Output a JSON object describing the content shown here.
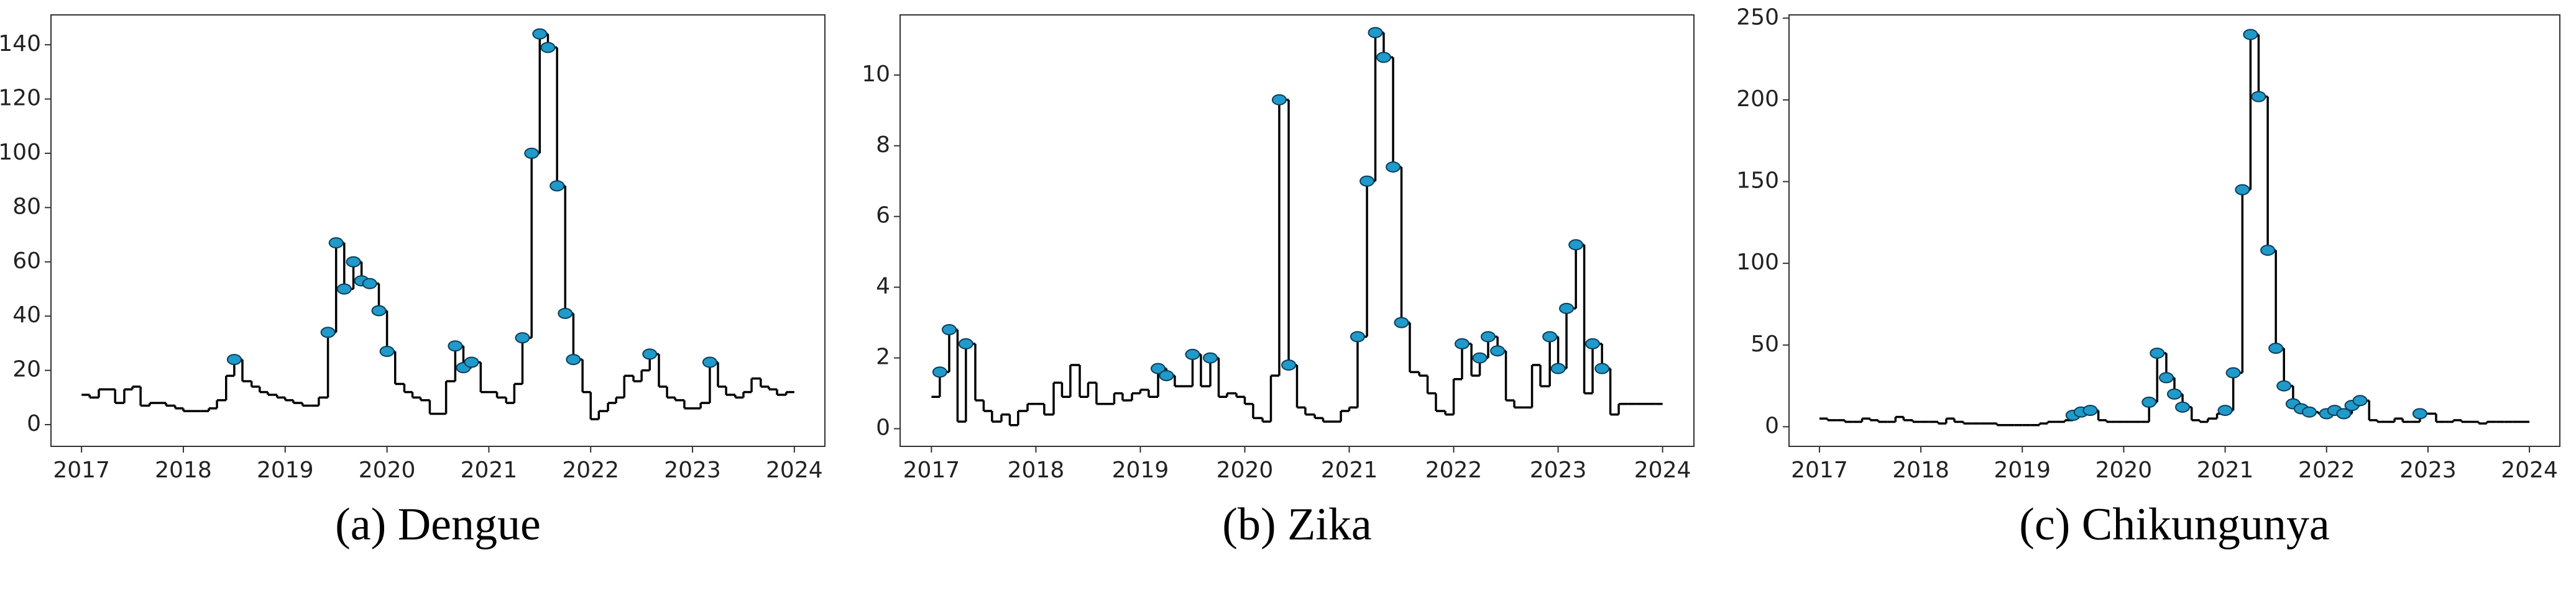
{
  "chart_data": [
    {
      "type": "line",
      "drawstyle": "steps",
      "caption": "(a) Dengue",
      "color": "#000000",
      "x": [
        2017,
        2017.08,
        2017.17,
        2017.25,
        2017.33,
        2017.42,
        2017.5,
        2017.58,
        2017.67,
        2017.75,
        2017.83,
        2017.92,
        2018,
        2018.08,
        2018.17,
        2018.25,
        2018.33,
        2018.42,
        2018.5,
        2018.58,
        2018.67,
        2018.75,
        2018.83,
        2018.92,
        2019,
        2019.08,
        2019.17,
        2019.25,
        2019.33,
        2019.42,
        2019.5,
        2019.58,
        2019.67,
        2019.75,
        2019.83,
        2019.92,
        2020,
        2020.08,
        2020.17,
        2020.25,
        2020.33,
        2020.42,
        2020.5,
        2020.58,
        2020.67,
        2020.75,
        2020.83,
        2020.92,
        2021,
        2021.08,
        2021.17,
        2021.25,
        2021.33,
        2021.42,
        2021.5,
        2021.58,
        2021.67,
        2021.75,
        2021.83,
        2021.92,
        2022,
        2022.08,
        2022.17,
        2022.25,
        2022.33,
        2022.42,
        2022.5,
        2022.58,
        2022.67,
        2022.75,
        2022.83,
        2022.92,
        2023,
        2023.08,
        2023.17,
        2023.25,
        2023.33,
        2023.42,
        2023.5,
        2023.58,
        2023.67,
        2023.75,
        2023.83,
        2023.92
      ],
      "values": [
        11,
        10,
        13,
        13,
        8,
        13,
        14,
        7,
        8,
        8,
        7,
        6,
        5,
        5,
        5,
        6,
        9,
        18,
        24,
        16,
        14,
        12,
        11,
        10,
        9,
        8,
        7,
        7,
        10,
        34,
        67,
        50,
        60,
        53,
        52,
        42,
        27,
        15,
        12,
        10,
        9,
        4,
        4,
        16,
        29,
        21,
        23,
        12,
        12,
        10,
        8,
        15,
        32,
        100,
        144,
        139,
        88,
        41,
        24,
        12,
        2,
        5,
        8,
        10,
        18,
        16,
        20,
        26,
        14,
        10,
        9,
        6,
        6,
        8,
        23,
        14,
        11,
        10,
        12,
        17,
        14,
        13,
        11,
        12
      ],
      "markers": {
        "color": "#1f9ac9",
        "x": [
          2018.5,
          2019.42,
          2019.5,
          2019.58,
          2019.67,
          2019.75,
          2019.83,
          2019.92,
          2020,
          2020.67,
          2020.75,
          2020.83,
          2021.33,
          2021.42,
          2021.5,
          2021.58,
          2021.67,
          2021.75,
          2021.83,
          2022.58,
          2023.17
        ],
        "values": [
          24,
          34,
          67,
          50,
          60,
          53,
          52,
          42,
          27,
          29,
          21,
          23,
          32,
          100,
          144,
          139,
          88,
          41,
          24,
          26,
          23
        ]
      },
      "xlim": [
        2016.7,
        2024.3
      ],
      "xticks": [
        2017,
        2018,
        2019,
        2020,
        2021,
        2022,
        2023,
        2024
      ],
      "ylim": [
        -8,
        151
      ],
      "yticks": [
        0,
        20,
        40,
        60,
        80,
        100,
        120,
        140
      ]
    },
    {
      "type": "line",
      "drawstyle": "steps",
      "caption": "(b) Zika",
      "color": "#000000",
      "x": [
        2017,
        2017.08,
        2017.17,
        2017.25,
        2017.33,
        2017.42,
        2017.5,
        2017.58,
        2017.67,
        2017.75,
        2017.83,
        2017.92,
        2018,
        2018.08,
        2018.17,
        2018.25,
        2018.33,
        2018.42,
        2018.5,
        2018.58,
        2018.67,
        2018.75,
        2018.83,
        2018.92,
        2019,
        2019.08,
        2019.17,
        2019.25,
        2019.33,
        2019.42,
        2019.5,
        2019.58,
        2019.67,
        2019.75,
        2019.83,
        2019.92,
        2020,
        2020.08,
        2020.17,
        2020.25,
        2020.33,
        2020.42,
        2020.5,
        2020.58,
        2020.67,
        2020.75,
        2020.83,
        2020.92,
        2021,
        2021.08,
        2021.17,
        2021.25,
        2021.33,
        2021.42,
        2021.5,
        2021.58,
        2021.67,
        2021.75,
        2021.83,
        2021.92,
        2022,
        2022.08,
        2022.17,
        2022.25,
        2022.33,
        2022.42,
        2022.5,
        2022.58,
        2022.67,
        2022.75,
        2022.83,
        2022.92,
        2023,
        2023.08,
        2023.17,
        2023.25,
        2023.33,
        2023.42,
        2023.5,
        2023.58,
        2023.67,
        2023.75,
        2023.83,
        2023.92
      ],
      "values": [
        0.9,
        1.6,
        2.8,
        0.2,
        2.4,
        0.8,
        0.5,
        0.2,
        0.4,
        0.1,
        0.5,
        0.7,
        0.7,
        0.4,
        1.3,
        0.9,
        1.8,
        0.9,
        1.3,
        0.7,
        0.7,
        1.0,
        0.8,
        1.0,
        1.1,
        0.9,
        1.7,
        1.5,
        1.2,
        1.2,
        2.1,
        1.2,
        2.0,
        0.9,
        1.0,
        0.9,
        0.7,
        0.3,
        0.2,
        1.5,
        9.3,
        1.8,
        0.6,
        0.4,
        0.3,
        0.2,
        0.2,
        0.5,
        0.6,
        2.6,
        7.0,
        11.2,
        10.5,
        7.4,
        3.0,
        1.6,
        1.5,
        1.0,
        0.5,
        0.4,
        1.4,
        2.4,
        1.5,
        2.0,
        2.6,
        2.2,
        0.8,
        0.6,
        0.6,
        1.8,
        1.2,
        2.6,
        1.7,
        3.4,
        5.2,
        1.0,
        2.4,
        1.7,
        0.4,
        0.7,
        0.7,
        0.7,
        0.7,
        0.7
      ],
      "markers": {
        "color": "#1f9ac9",
        "x": [
          2017.08,
          2017.17,
          2017.33,
          2019.17,
          2019.25,
          2019.5,
          2019.67,
          2020.33,
          2020.42,
          2021.08,
          2021.17,
          2021.25,
          2021.33,
          2021.42,
          2021.5,
          2022.08,
          2022.25,
          2022.33,
          2022.42,
          2022.92,
          2023,
          2023.08,
          2023.17,
          2023.33,
          2023.42
        ],
        "values": [
          1.6,
          2.8,
          2.4,
          1.7,
          1.5,
          2.1,
          2.0,
          9.3,
          1.8,
          2.6,
          7.0,
          11.2,
          10.5,
          7.4,
          3.0,
          2.4,
          2.0,
          2.6,
          2.2,
          2.6,
          1.7,
          3.4,
          5.2,
          2.4,
          1.7
        ]
      },
      "xlim": [
        2016.7,
        2024.3
      ],
      "xticks": [
        2017,
        2018,
        2019,
        2020,
        2021,
        2022,
        2023,
        2024
      ],
      "ylim": [
        -0.5,
        11.7
      ],
      "yticks": [
        0,
        2,
        4,
        6,
        8,
        10
      ]
    },
    {
      "type": "line",
      "drawstyle": "steps",
      "caption": "(c) Chikungunya",
      "color": "#000000",
      "x": [
        2017,
        2017.08,
        2017.17,
        2017.25,
        2017.33,
        2017.42,
        2017.5,
        2017.58,
        2017.67,
        2017.75,
        2017.83,
        2017.92,
        2018,
        2018.08,
        2018.17,
        2018.25,
        2018.33,
        2018.42,
        2018.5,
        2018.58,
        2018.67,
        2018.75,
        2018.83,
        2018.92,
        2019,
        2019.08,
        2019.17,
        2019.25,
        2019.33,
        2019.42,
        2019.5,
        2019.58,
        2019.67,
        2019.75,
        2019.83,
        2019.92,
        2020,
        2020.08,
        2020.17,
        2020.25,
        2020.33,
        2020.42,
        2020.5,
        2020.58,
        2020.67,
        2020.75,
        2020.83,
        2020.92,
        2021,
        2021.08,
        2021.17,
        2021.25,
        2021.33,
        2021.42,
        2021.5,
        2021.58,
        2021.67,
        2021.75,
        2021.83,
        2021.92,
        2022,
        2022.08,
        2022.17,
        2022.25,
        2022.33,
        2022.42,
        2022.5,
        2022.58,
        2022.67,
        2022.75,
        2022.83,
        2022.92,
        2023,
        2023.08,
        2023.17,
        2023.25,
        2023.33,
        2023.42,
        2023.5,
        2023.58,
        2023.67,
        2023.75,
        2023.83,
        2023.92
      ],
      "values": [
        5,
        4,
        4,
        3,
        3,
        5,
        4,
        3,
        3,
        6,
        4,
        3,
        3,
        3,
        2,
        5,
        3,
        2,
        2,
        2,
        2,
        1,
        1,
        1,
        1,
        1,
        2,
        3,
        3,
        4,
        7,
        9,
        10,
        4,
        3,
        3,
        3,
        3,
        3,
        15,
        45,
        30,
        20,
        12,
        4,
        3,
        5,
        8,
        10,
        33,
        145,
        240,
        202,
        108,
        48,
        25,
        14,
        11,
        9,
        8,
        8,
        10,
        8,
        13,
        16,
        4,
        3,
        3,
        5,
        3,
        3,
        8,
        8,
        3,
        3,
        4,
        3,
        3,
        2,
        3,
        3,
        3,
        3,
        3
      ],
      "markers": {
        "color": "#1f9ac9",
        "x": [
          2019.5,
          2019.58,
          2019.67,
          2020.25,
          2020.33,
          2020.42,
          2020.5,
          2020.58,
          2021,
          2021.08,
          2021.17,
          2021.25,
          2021.33,
          2021.42,
          2021.5,
          2021.58,
          2021.67,
          2021.75,
          2021.83,
          2022,
          2022.08,
          2022.17,
          2022.25,
          2022.33,
          2022.92
        ],
        "values": [
          7,
          9,
          10,
          15,
          45,
          30,
          20,
          12,
          10,
          33,
          145,
          240,
          202,
          108,
          48,
          25,
          14,
          11,
          9,
          8,
          10,
          8,
          13,
          16,
          8
        ]
      },
      "xlim": [
        2016.7,
        2024.3
      ],
      "xticks": [
        2017,
        2018,
        2019,
        2020,
        2021,
        2022,
        2023,
        2024
      ],
      "ylim": [
        -12,
        252
      ],
      "yticks": [
        0,
        50,
        100,
        150,
        200,
        250
      ]
    }
  ]
}
